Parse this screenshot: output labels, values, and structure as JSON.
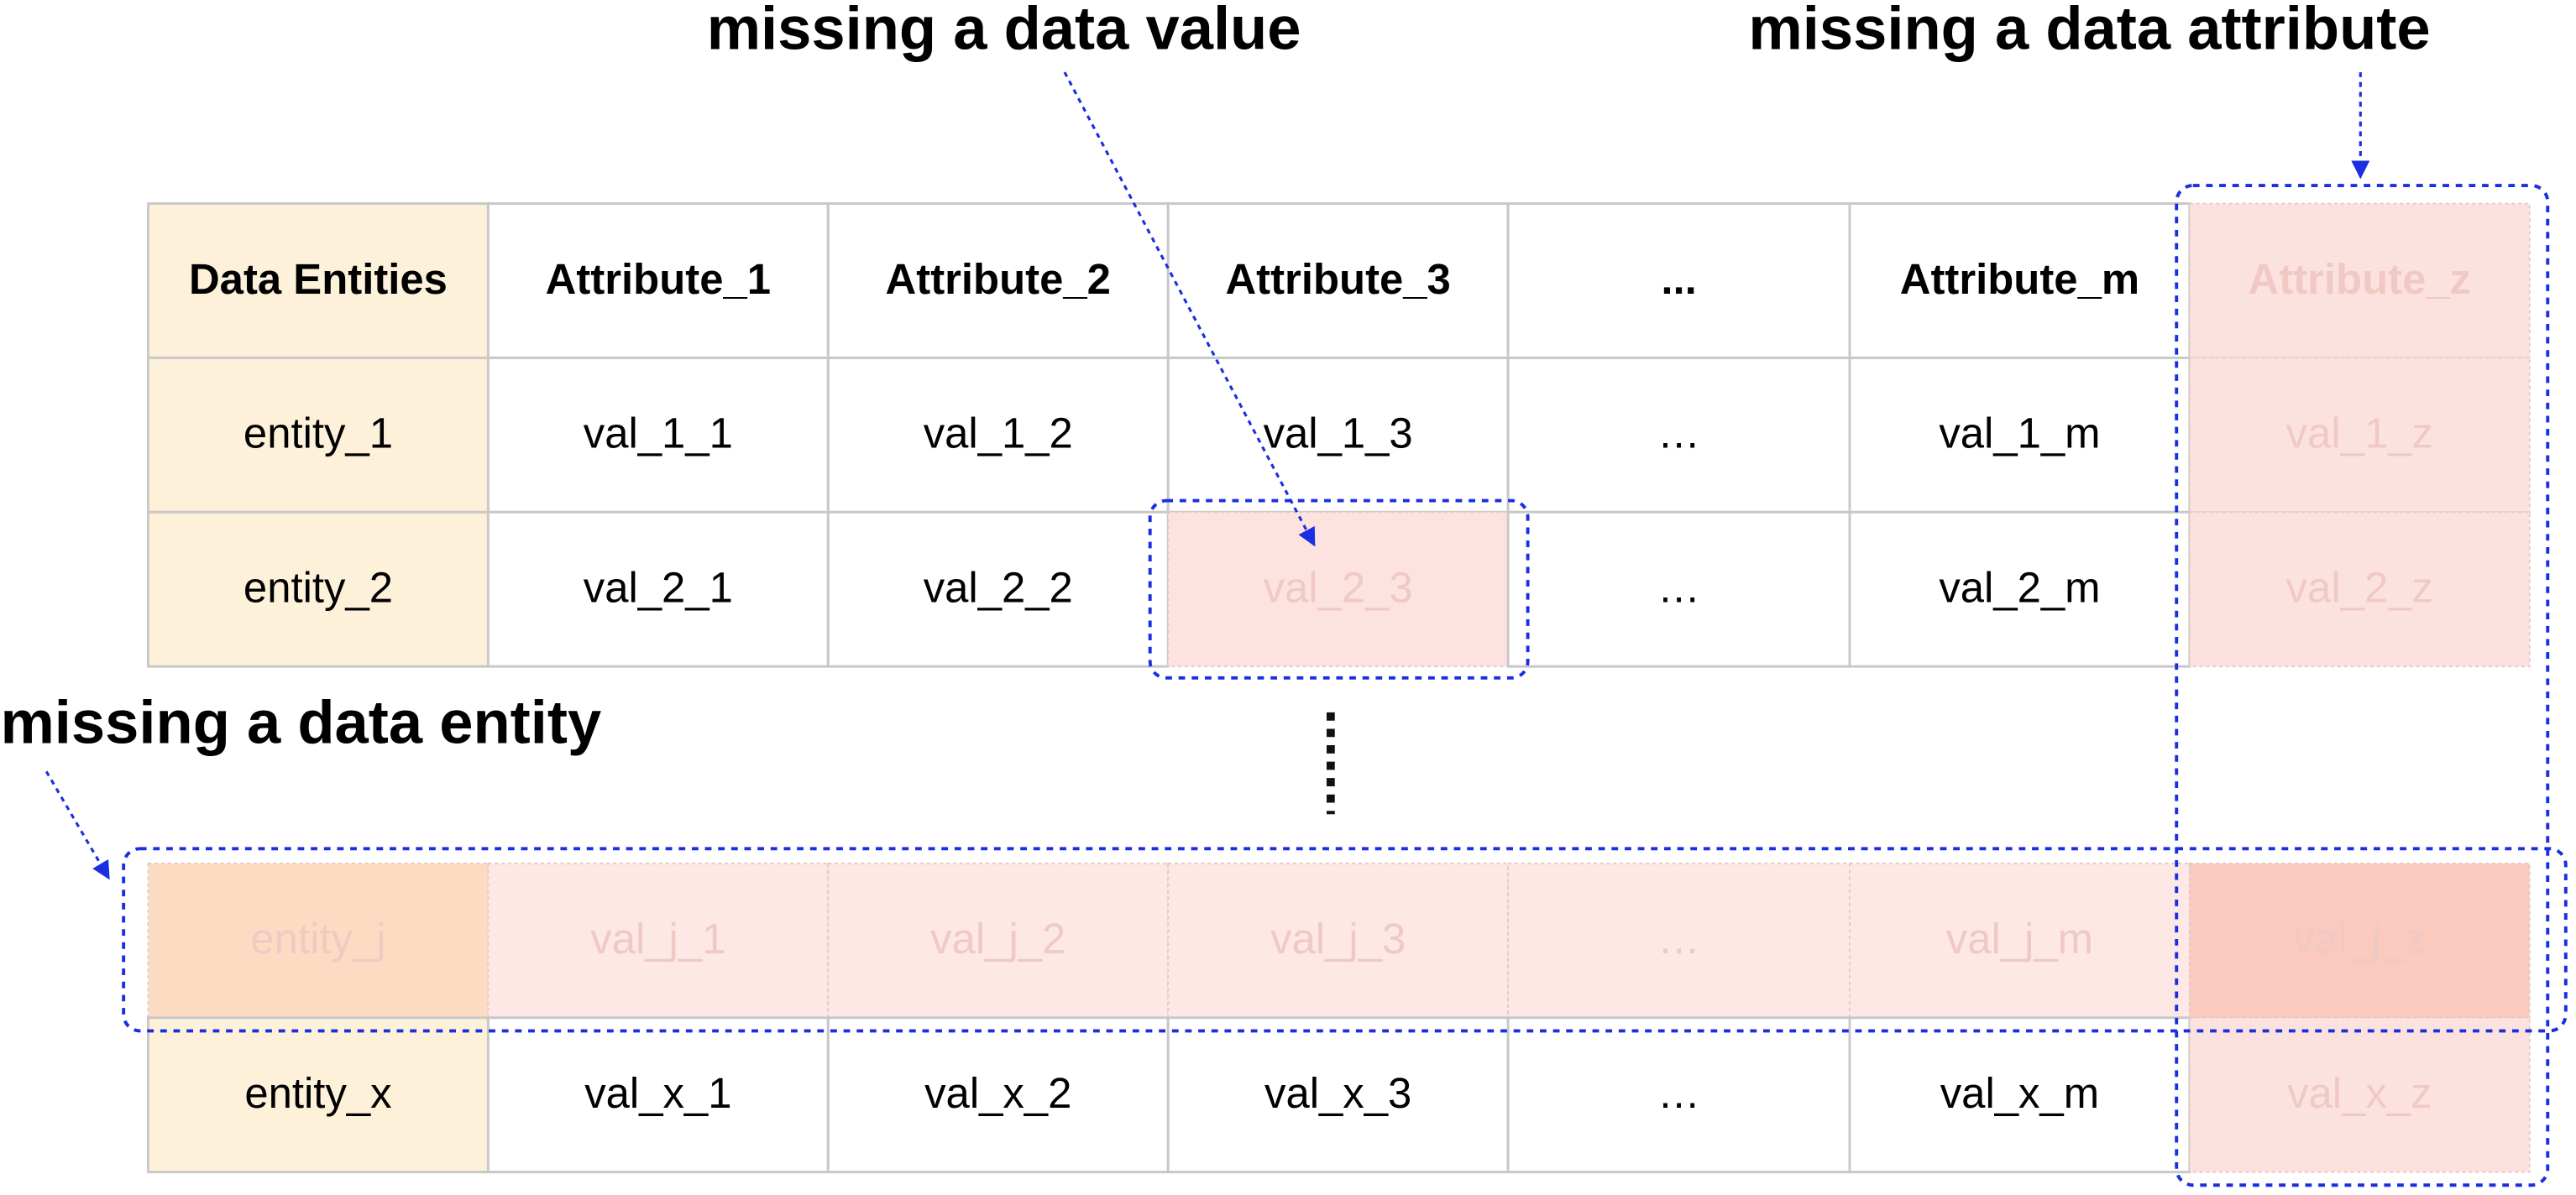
{
  "annotations": {
    "missing_value": "missing a data value",
    "missing_attribute": "missing a data attribute",
    "missing_entity": "missing a data entity"
  },
  "table": {
    "header": [
      "Data Entities",
      "Attribute_1",
      "Attribute_2",
      "Attribute_3",
      "...",
      "Attribute_m",
      "Attribute_z"
    ],
    "rows": [
      [
        "entity_1",
        "val_1_1",
        "val_1_2",
        "val_1_3",
        "…",
        "val_1_m",
        "val_1_z"
      ],
      [
        "entity_2",
        "val_2_1",
        "val_2_2",
        "val_2_3",
        "…",
        "val_2_m",
        "val_2_z"
      ],
      [
        "entity_j",
        "val_j_1",
        "val_j_2",
        "val_j_3",
        "…",
        "val_j_m",
        "val_j_z"
      ],
      [
        "entity_x",
        "val_x_1",
        "val_x_2",
        "val_x_3",
        "…",
        "val_x_m",
        "val_x_z"
      ]
    ]
  }
}
